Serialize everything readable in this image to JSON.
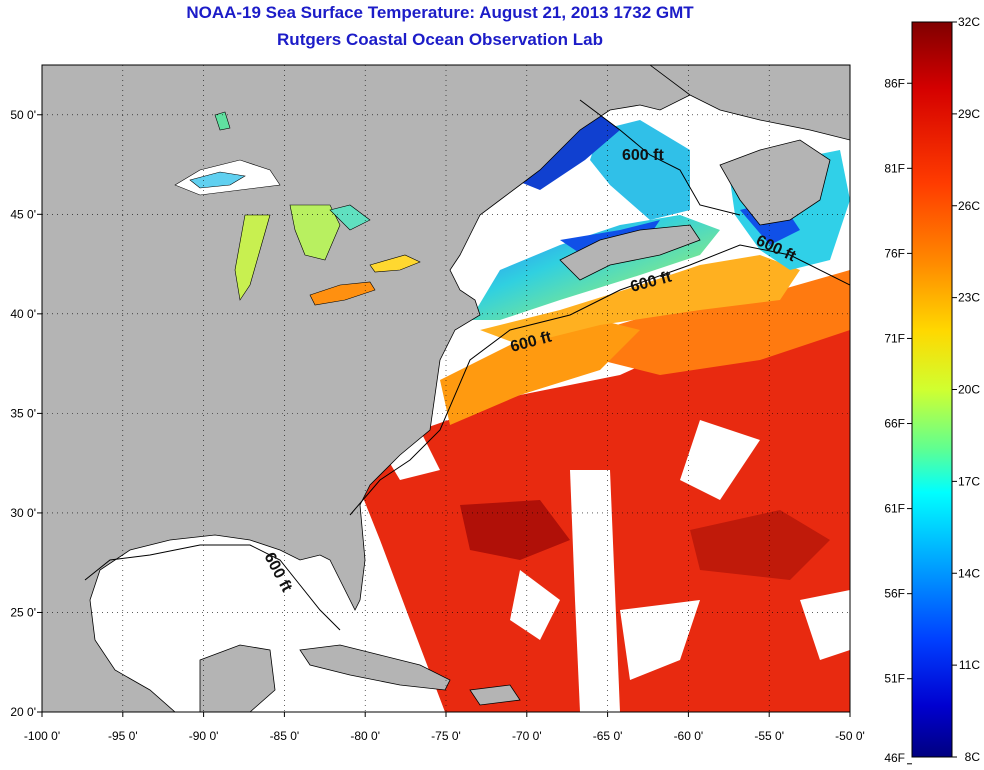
{
  "title": {
    "line1": "NOAA-19 Sea Surface Temperature:  August 21, 2013 1732 GMT",
    "line2": "Rutgers Coastal Ocean Observation Lab"
  },
  "map": {
    "lon_range": [
      -100,
      -50
    ],
    "lat_range": [
      20,
      52.5
    ],
    "lon_ticks": [
      "-100 0'",
      "-95 0'",
      "-90 0'",
      "-85 0'",
      "-80 0'",
      "-75 0'",
      "-70 0'",
      "-65 0'",
      "-60 0'",
      "-55 0'",
      "-50 0'"
    ],
    "lat_ticks": [
      "20 0'",
      "25 0'",
      "30 0'",
      "35 0'",
      "40 0'",
      "45 0'",
      "50 0'"
    ],
    "contour_labels": [
      "600 ft",
      "600 ft",
      "600 ft",
      "600 ft",
      "600 ft"
    ],
    "colors": {
      "land": "#b4b4b4",
      "no_data": "#ffffff"
    }
  },
  "colorbar": {
    "celsius": [
      "32C",
      "29C",
      "26C",
      "23C",
      "20C",
      "17C",
      "14C",
      "11C",
      "8C"
    ],
    "fahrenheit": [
      "86F",
      "81F",
      "76F",
      "71F",
      "66F",
      "61F",
      "56F",
      "51F",
      "46F"
    ],
    "stops": [
      "#800000",
      "#d40000",
      "#ff3c00",
      "#ff8c00",
      "#ffd800",
      "#d0ff30",
      "#60ff90",
      "#00ffff",
      "#00a0ff",
      "#0040ff",
      "#0000d0",
      "#000080"
    ]
  }
}
